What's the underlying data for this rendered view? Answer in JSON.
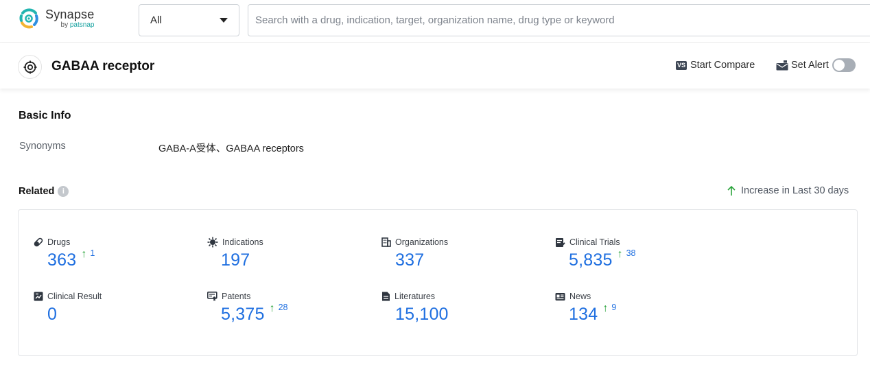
{
  "brand": {
    "name": "Synapse",
    "by": "by",
    "by_brand": "patsnap"
  },
  "search": {
    "filter_value": "All",
    "placeholder": "Search with a drug, indication, target, organization name, drug type or keyword"
  },
  "header": {
    "title": "GABAA receptor",
    "compare_badge": "VS",
    "compare_label": "Start Compare",
    "alert_label": "Set Alert",
    "alert_enabled": false
  },
  "basic_info": {
    "heading": "Basic Info",
    "synonyms_label": "Synonyms",
    "synonyms_value": "GABA-A受体、GABAA receptors"
  },
  "related": {
    "heading": "Related",
    "info_glyph": "i",
    "increase_note": "Increase in Last 30 days",
    "stats": [
      {
        "label": "Drugs",
        "value": "363",
        "increase": "1",
        "icon": "pill-icon"
      },
      {
        "label": "Indications",
        "value": "197",
        "increase": "",
        "icon": "virus-icon"
      },
      {
        "label": "Organizations",
        "value": "337",
        "increase": "",
        "icon": "building-icon"
      },
      {
        "label": "Clinical Trials",
        "value": "5,835",
        "increase": "38",
        "icon": "clipboard-icon"
      },
      {
        "label": "Clinical Result",
        "value": "0",
        "increase": "",
        "icon": "chart-doc-icon"
      },
      {
        "label": "Patents",
        "value": "5,375",
        "increase": "28",
        "icon": "patent-icon"
      },
      {
        "label": "Literatures",
        "value": "15,100",
        "increase": "",
        "icon": "document-icon"
      },
      {
        "label": "News",
        "value": "134",
        "increase": "9",
        "icon": "newspaper-icon"
      }
    ]
  },
  "colors": {
    "accent": "#1f6fe0",
    "increase": "#2aa33b",
    "brand": "#17a2a0"
  }
}
